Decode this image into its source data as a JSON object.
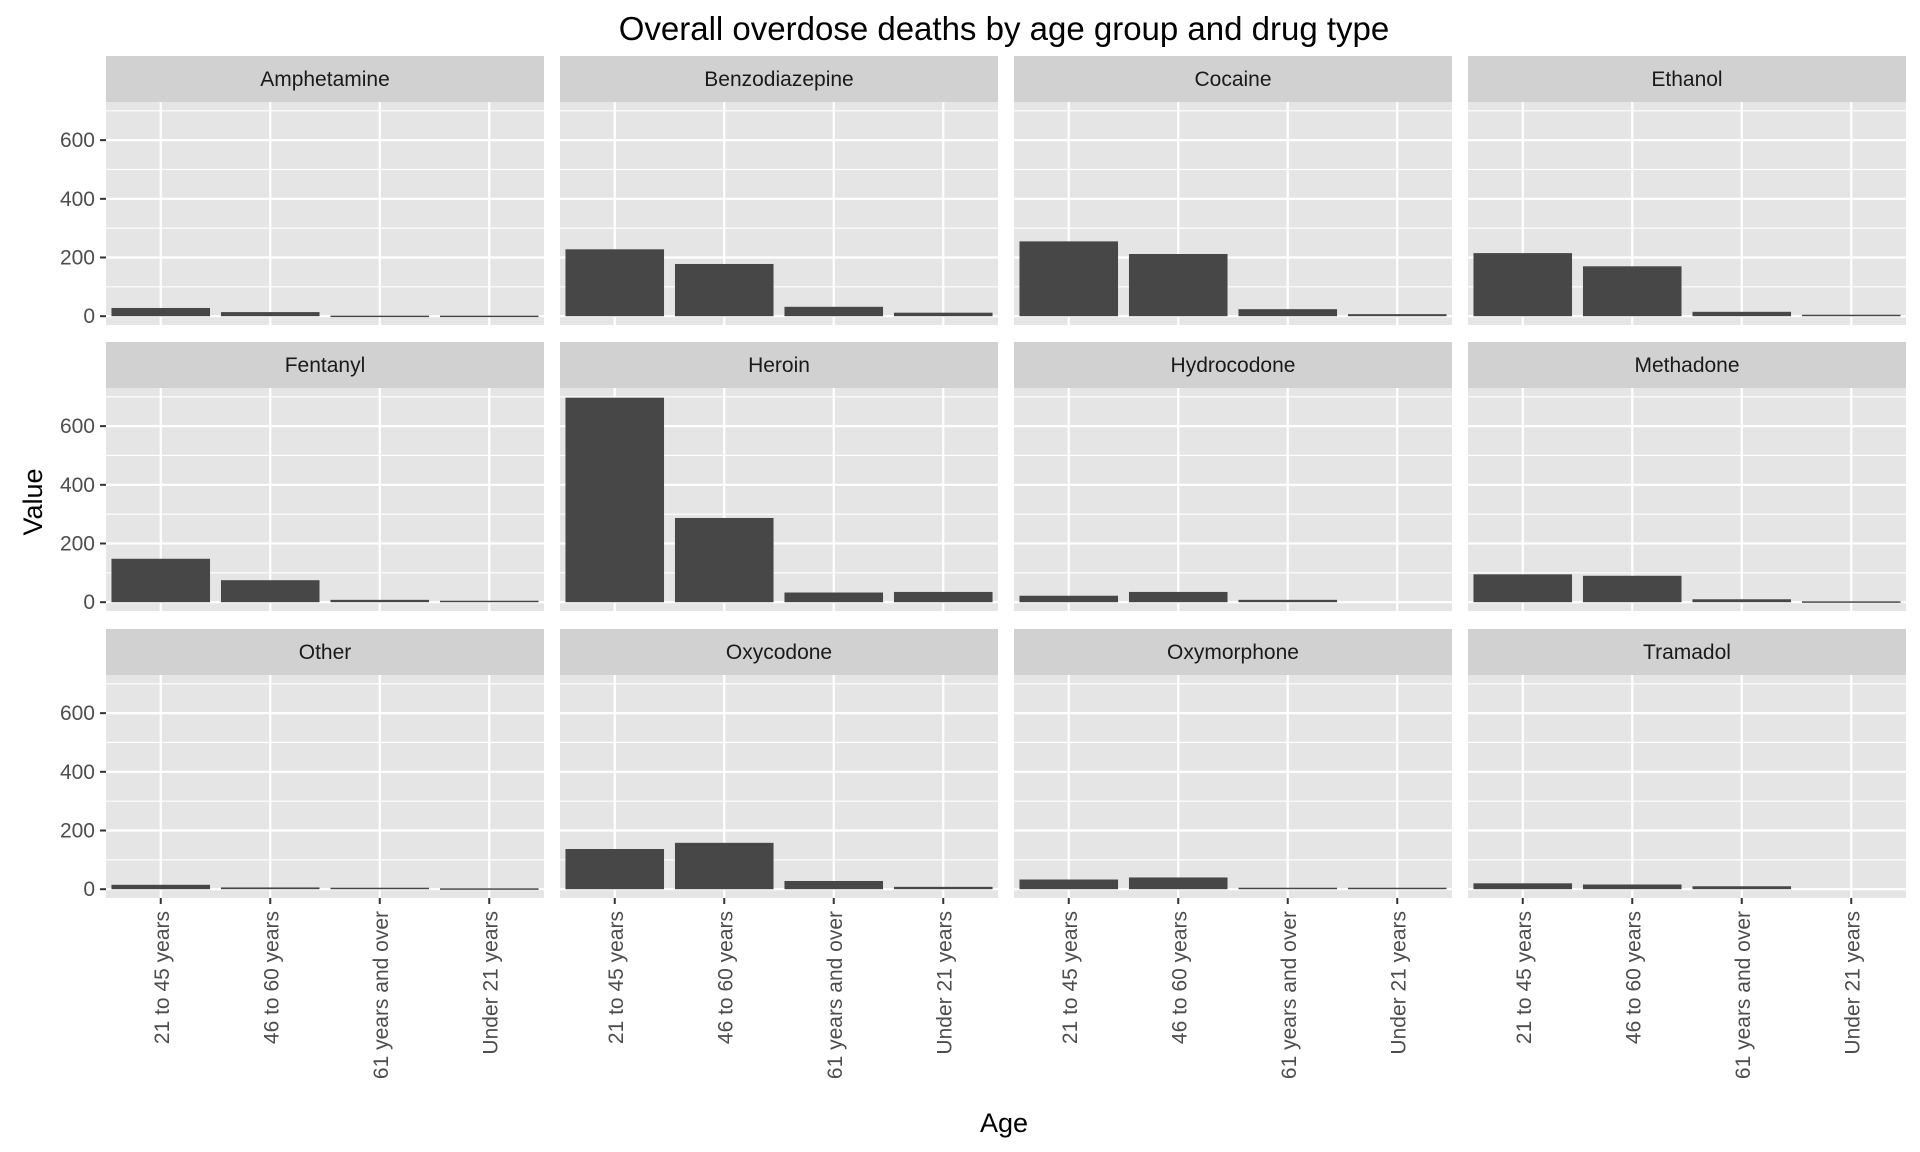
{
  "chart_data": {
    "type": "bar",
    "title": "Overall overdose deaths by age group and drug type",
    "xlabel": "Age",
    "ylabel": "Value",
    "categories": [
      "21 to 45 years",
      "46 to 60 years",
      "61 years and over",
      "Under 21 years"
    ],
    "ylim": [
      -30,
      730
    ],
    "yticks": [
      0,
      200,
      400,
      600
    ],
    "grid": true,
    "facets": [
      {
        "name": "Amphetamine",
        "values": [
          28,
          14,
          2,
          2
        ]
      },
      {
        "name": "Benzodiazepine",
        "values": [
          228,
          178,
          32,
          12
        ]
      },
      {
        "name": "Cocaine",
        "values": [
          255,
          212,
          24,
          7
        ]
      },
      {
        "name": "Ethanol",
        "values": [
          215,
          170,
          15,
          5
        ]
      },
      {
        "name": "Fentanyl",
        "values": [
          148,
          75,
          8,
          5
        ]
      },
      {
        "name": "Heroin",
        "values": [
          697,
          287,
          33,
          35
        ]
      },
      {
        "name": "Hydrocodone",
        "values": [
          22,
          35,
          8,
          null
        ]
      },
      {
        "name": "Methadone",
        "values": [
          95,
          90,
          10,
          3
        ]
      },
      {
        "name": "Other",
        "values": [
          15,
          6,
          5,
          3
        ]
      },
      {
        "name": "Oxycodone",
        "values": [
          137,
          158,
          28,
          8
        ]
      },
      {
        "name": "Oxymorphone",
        "values": [
          33,
          40,
          5,
          5
        ]
      },
      {
        "name": "Tramadol",
        "values": [
          20,
          16,
          10,
          null
        ]
      }
    ],
    "colors": {
      "bar": "#474747",
      "panel_background": "#e5e5e5",
      "strip_background": "#d1d1d1",
      "gridline": "#ffffff",
      "tick_mark": "#333333"
    }
  }
}
